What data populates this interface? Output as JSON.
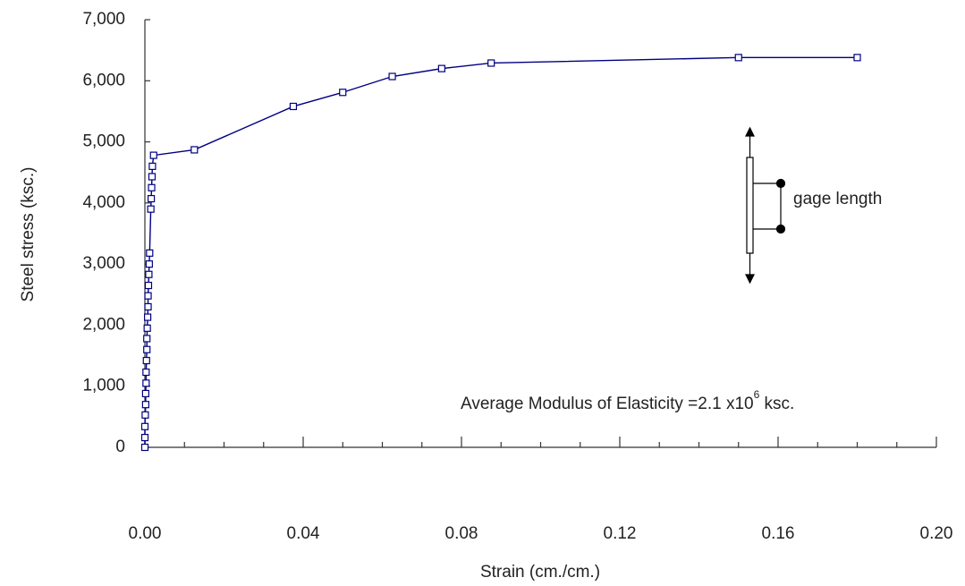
{
  "chart_data": {
    "type": "line",
    "x_label": "Strain (cm./cm.)",
    "y_label": "Steel stress (ksc.)",
    "annotation": {
      "text": "Average Modulus of Elasticity =2.1 x10",
      "superscript": "6",
      "suffix": " ksc."
    },
    "inset_label": "gage length",
    "x": [
      0,
      0,
      0,
      0.0001,
      0.0002,
      0.0002,
      0.0003,
      0.0003,
      0.0004,
      0.0005,
      0.0005,
      0.0006,
      0.0007,
      0.0008,
      0.0008,
      0.0009,
      0.001,
      0.0011,
      0.0012,
      0.0015,
      0.0016,
      0.0017,
      0.0018,
      0.0019,
      0.0022,
      0.0125,
      0.0375,
      0.05,
      0.0625,
      0.075,
      0.0875,
      0.15,
      0.18
    ],
    "series": [
      {
        "color": "#000080",
        "values": [
          0,
          160,
          340,
          530,
          700,
          880,
          1050,
          1230,
          1420,
          1600,
          1780,
          1950,
          2130,
          2300,
          2480,
          2650,
          2830,
          3000,
          3180,
          3900,
          4070,
          4250,
          4430,
          4600,
          4780,
          4870,
          5580,
          5810,
          6070,
          6200,
          6290,
          6380,
          6380
        ]
      }
    ],
    "xlim": [
      0,
      0.2
    ],
    "xticks": [
      {
        "value": 0,
        "label": "0.00"
      },
      0.04,
      0.08,
      0.12,
      0.16,
      {
        "value": 0.2,
        "label": "0.20"
      }
    ],
    "ylim": [
      0,
      7000
    ],
    "yticks": [
      0,
      {
        "value": 1000,
        "label": "1,000"
      },
      {
        "value": 2000,
        "label": "2,000"
      },
      {
        "value": 3000,
        "label": "3,000"
      },
      {
        "value": 4000,
        "label": "4,000"
      },
      {
        "value": 5000,
        "label": "5,000"
      },
      {
        "value": 6000,
        "label": "6,000"
      },
      {
        "value": 7000,
        "label": "7,000"
      }
    ],
    "grid": false
  }
}
